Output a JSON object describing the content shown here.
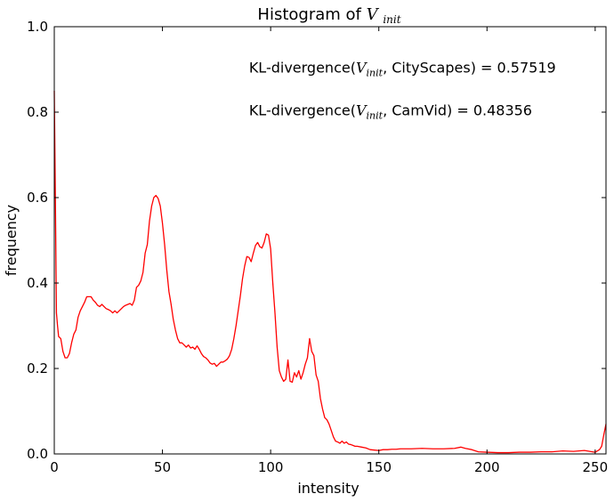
{
  "chart_data": {
    "type": "line",
    "title": {
      "prefix": "Histogram of ",
      "var_main": "V",
      "var_sub": "init"
    },
    "xlabel": "intensity",
    "ylabel": "frequency",
    "xlim": [
      0,
      255
    ],
    "ylim": [
      0.0,
      1.0
    ],
    "xticks": [
      {
        "value": 0,
        "label": "0"
      },
      {
        "value": 50,
        "label": "50"
      },
      {
        "value": 100,
        "label": "100"
      },
      {
        "value": 150,
        "label": "150"
      },
      {
        "value": 200,
        "label": "200"
      },
      {
        "value": 250,
        "label": "250"
      }
    ],
    "yticks": [
      {
        "value": 0.0,
        "label": "0.0"
      },
      {
        "value": 0.2,
        "label": "0.2"
      },
      {
        "value": 0.4,
        "label": "0.4"
      },
      {
        "value": 0.6,
        "label": "0.6"
      },
      {
        "value": 0.8,
        "label": "0.8"
      },
      {
        "value": 1.0,
        "label": "1.0"
      }
    ],
    "grid": false,
    "annotations": [
      {
        "prefix": "KL-divergence(",
        "var_main": "V",
        "var_sub": "init",
        "suffix": ", CityScapes) = 0.57519",
        "x": 90,
        "y": 0.905
      },
      {
        "prefix": "KL-divergence(",
        "var_main": "V",
        "var_sub": "init",
        "suffix": ", CamVid) = 0.48356",
        "x": 90,
        "y": 0.805
      }
    ],
    "series": [
      {
        "color": "#ff0000",
        "x": [
          0,
          0.5,
          1,
          1.5,
          2,
          3,
          4,
          5,
          6,
          7,
          8,
          9,
          10,
          11,
          12,
          13,
          14,
          15,
          16,
          17,
          18,
          19,
          20,
          21,
          22,
          23,
          24,
          25,
          26,
          27,
          28,
          29,
          30,
          31,
          32,
          33,
          34,
          35,
          36,
          37,
          38,
          39,
          40,
          41,
          42,
          43,
          44,
          45,
          46,
          47,
          48,
          49,
          50,
          51,
          52,
          53,
          54,
          55,
          56,
          57,
          58,
          59,
          60,
          61,
          62,
          63,
          64,
          65,
          66,
          67,
          68,
          69,
          70,
          71,
          72,
          73,
          74,
          75,
          76,
          77,
          78,
          79,
          80,
          81,
          82,
          83,
          84,
          85,
          86,
          87,
          88,
          89,
          90,
          91,
          92,
          93,
          94,
          95,
          96,
          97,
          98,
          99,
          100,
          101,
          102,
          103,
          104,
          105,
          106,
          107,
          108,
          109,
          110,
          111,
          112,
          113,
          114,
          115,
          116,
          117,
          118,
          119,
          120,
          121,
          122,
          123,
          124,
          125,
          126,
          127,
          128,
          129,
          130,
          131,
          132,
          133,
          134,
          135,
          136,
          137,
          138,
          139,
          140,
          142,
          144,
          146,
          148,
          150,
          152,
          154,
          156,
          158,
          160,
          165,
          170,
          175,
          180,
          185,
          188,
          190,
          193,
          196,
          200,
          205,
          210,
          215,
          220,
          225,
          230,
          235,
          240,
          245,
          250,
          252,
          253,
          254,
          255
        ],
        "y": [
          0.85,
          0.6,
          0.33,
          0.3,
          0.275,
          0.27,
          0.24,
          0.225,
          0.225,
          0.235,
          0.26,
          0.28,
          0.29,
          0.32,
          0.335,
          0.345,
          0.355,
          0.368,
          0.368,
          0.368,
          0.36,
          0.355,
          0.348,
          0.345,
          0.35,
          0.345,
          0.34,
          0.338,
          0.335,
          0.33,
          0.335,
          0.33,
          0.335,
          0.34,
          0.345,
          0.348,
          0.35,
          0.352,
          0.348,
          0.36,
          0.39,
          0.395,
          0.405,
          0.425,
          0.47,
          0.49,
          0.545,
          0.58,
          0.6,
          0.605,
          0.598,
          0.58,
          0.54,
          0.49,
          0.43,
          0.38,
          0.35,
          0.315,
          0.29,
          0.27,
          0.26,
          0.26,
          0.255,
          0.25,
          0.255,
          0.248,
          0.25,
          0.245,
          0.253,
          0.245,
          0.235,
          0.228,
          0.225,
          0.22,
          0.213,
          0.21,
          0.212,
          0.205,
          0.21,
          0.215,
          0.215,
          0.218,
          0.222,
          0.23,
          0.245,
          0.27,
          0.3,
          0.335,
          0.37,
          0.41,
          0.44,
          0.462,
          0.46,
          0.45,
          0.47,
          0.488,
          0.495,
          0.485,
          0.482,
          0.495,
          0.515,
          0.512,
          0.48,
          0.4,
          0.33,
          0.25,
          0.195,
          0.18,
          0.17,
          0.175,
          0.22,
          0.17,
          0.168,
          0.19,
          0.18,
          0.195,
          0.175,
          0.19,
          0.21,
          0.225,
          0.27,
          0.24,
          0.23,
          0.185,
          0.17,
          0.13,
          0.105,
          0.085,
          0.08,
          0.07,
          0.055,
          0.04,
          0.03,
          0.028,
          0.025,
          0.03,
          0.025,
          0.028,
          0.023,
          0.022,
          0.02,
          0.018,
          0.018,
          0.016,
          0.014,
          0.01,
          0.009,
          0.008,
          0.01,
          0.01,
          0.011,
          0.011,
          0.012,
          0.012,
          0.013,
          0.012,
          0.012,
          0.013,
          0.016,
          0.013,
          0.01,
          0.005,
          0.004,
          0.003,
          0.003,
          0.004,
          0.004,
          0.005,
          0.005,
          0.007,
          0.006,
          0.008,
          0.004,
          0.01,
          0.018,
          0.045,
          0.07
        ]
      }
    ]
  }
}
